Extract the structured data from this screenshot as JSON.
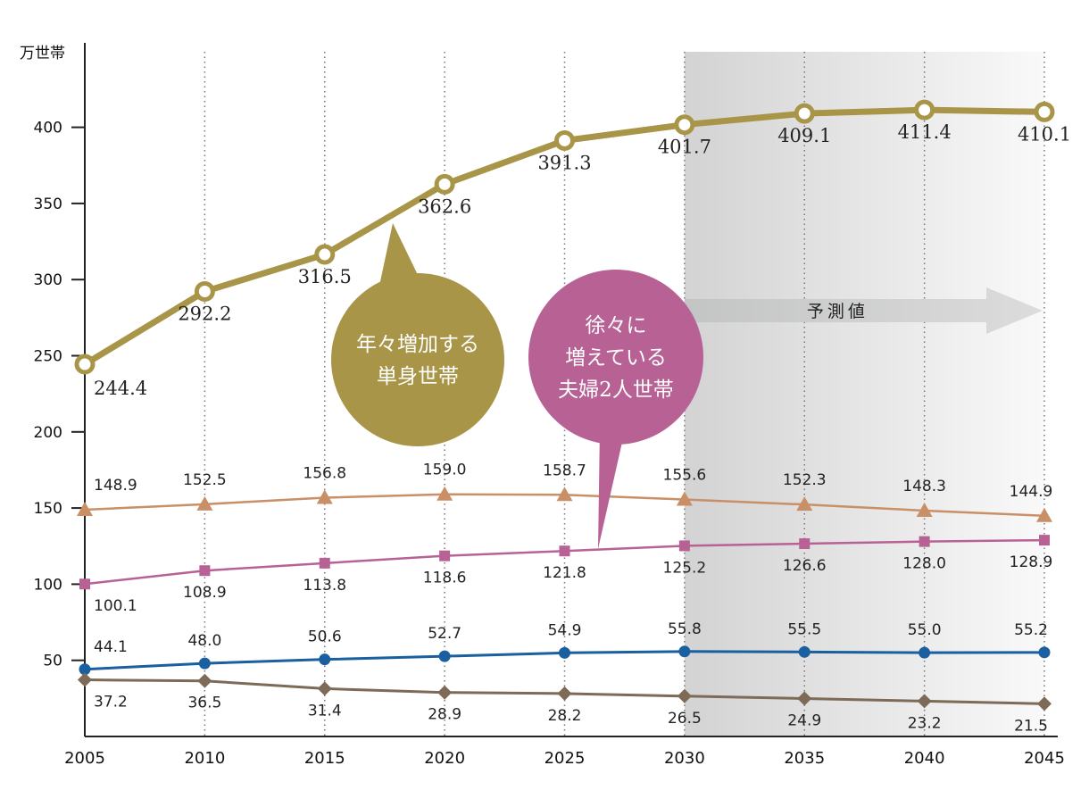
{
  "chart_data": {
    "type": "line",
    "unit_label": "万世帯",
    "x": [
      2005,
      2010,
      2015,
      2020,
      2025,
      2030,
      2035,
      2040,
      2045
    ],
    "xticks": [
      "2005",
      "2010",
      "2015",
      "2020",
      "2025",
      "2030",
      "2035",
      "2040",
      "2045"
    ],
    "yticks": [
      50,
      100,
      150,
      200,
      250,
      300,
      350,
      400
    ],
    "ylim": [
      0,
      450
    ],
    "forecast": {
      "label": "予測値",
      "from": 2030,
      "to": 2045
    },
    "grid": "vertical dotted",
    "series": [
      {
        "key": "single",
        "color": "#a89548",
        "marker": "open-circle",
        "values": [
          244.4,
          292.2,
          316.5,
          362.6,
          391.3,
          401.7,
          409.1,
          411.4,
          410.1
        ]
      },
      {
        "key": "orange",
        "color": "#c98f66",
        "marker": "triangle",
        "values": [
          148.9,
          152.5,
          156.8,
          159.0,
          158.7,
          155.6,
          152.3,
          148.3,
          144.9
        ]
      },
      {
        "key": "couple",
        "color": "#b86195",
        "marker": "square",
        "values": [
          100.1,
          108.9,
          113.8,
          118.6,
          121.8,
          125.2,
          126.6,
          128.0,
          128.9
        ]
      },
      {
        "key": "blue",
        "color": "#1a5fa0",
        "marker": "circle",
        "values": [
          44.1,
          48.0,
          50.6,
          52.7,
          54.9,
          55.8,
          55.5,
          55.0,
          55.2
        ]
      },
      {
        "key": "brown",
        "color": "#7d6a57",
        "marker": "diamond",
        "values": [
          37.2,
          36.5,
          31.4,
          28.9,
          28.2,
          26.5,
          24.9,
          23.2,
          21.5
        ]
      }
    ],
    "annotations": [
      {
        "series": "single",
        "lines": [
          "年々増加する",
          "単身世帯"
        ],
        "color": "#a89548"
      },
      {
        "series": "couple",
        "lines": [
          "徐々に",
          "増えている",
          "夫婦2人世帯"
        ],
        "color": "#b86195"
      }
    ]
  }
}
